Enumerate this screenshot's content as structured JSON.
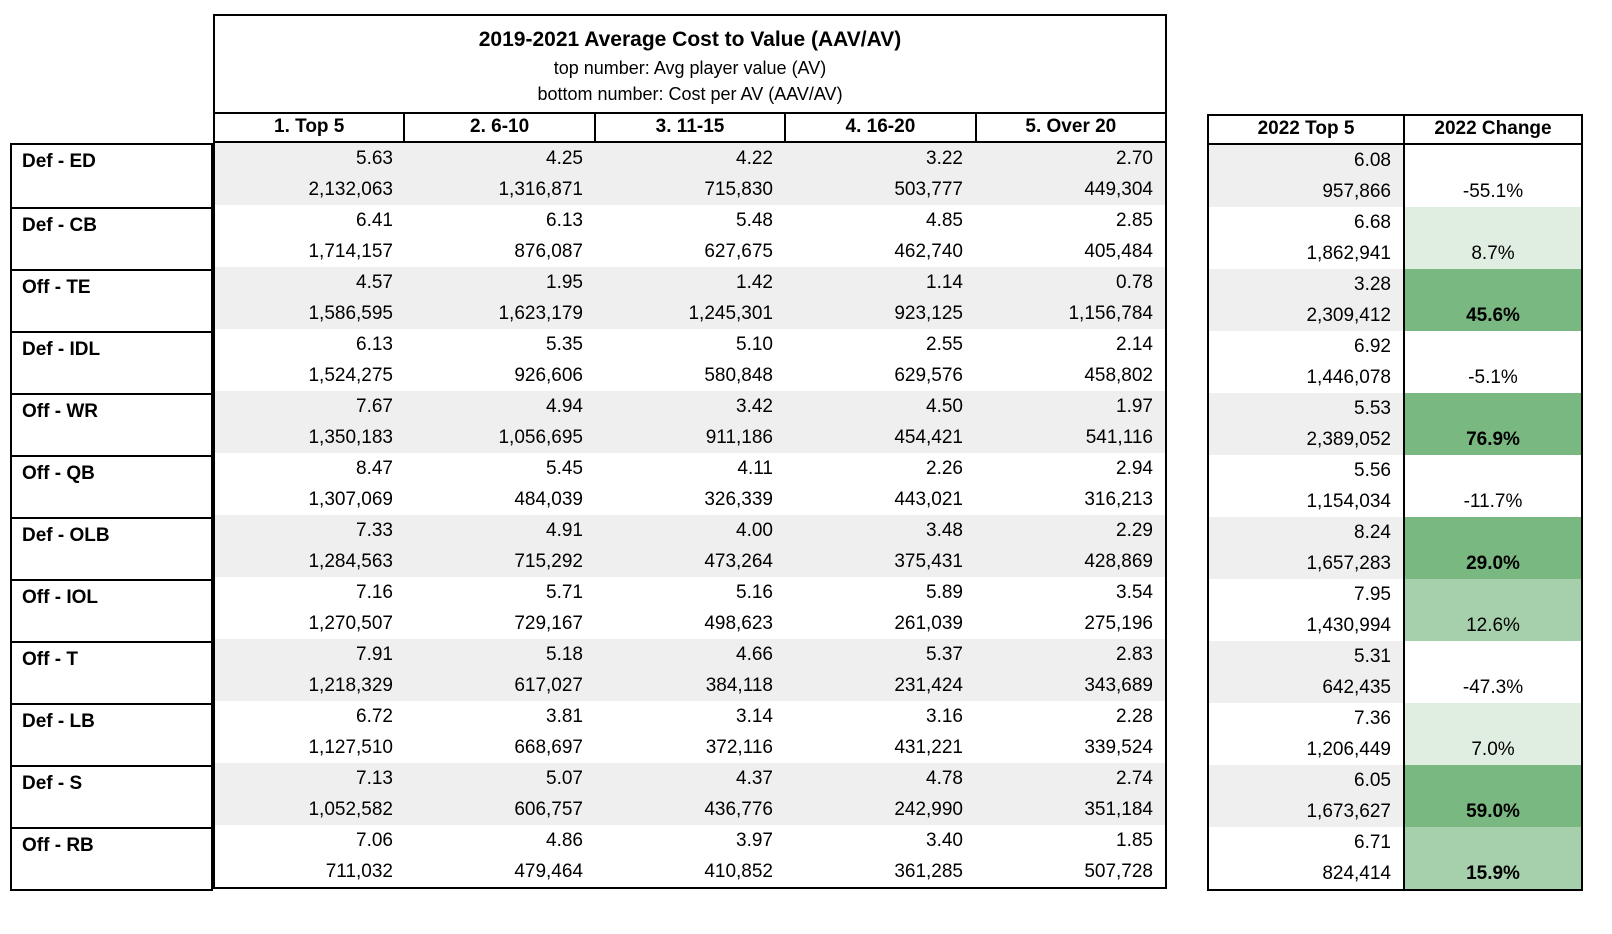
{
  "colors": {
    "border": "#000000",
    "band_gray": "#efefef",
    "row_white": "#ffffff",
    "change_fills": {
      "none": "#ffffff",
      "pale": "#e0eee1",
      "mid": "#a6d0ab",
      "strong": "#79b981"
    }
  },
  "chart_data": {
    "type": "table",
    "title": "2019-2021 Average Cost to Value (AAV/AV)",
    "subtitles": [
      "top number: Avg player value (AV)",
      "bottom number: Cost per AV (AAV/AV)"
    ],
    "columns": [
      "1. Top 5",
      "2. 6-10",
      "3. 11-15",
      "4. 16-20",
      "5. Over 20",
      "2022 Top 5",
      "2022 Change"
    ],
    "row_format": "top number = Avg player value (AV); bottom number = Cost per AV (AAV/AV)",
    "rows": [
      {
        "label": "Def - ED",
        "av": [
          "5.63",
          "4.25",
          "4.22",
          "3.22",
          "2.70"
        ],
        "cost": [
          "2,132,063",
          "1,316,871",
          "715,830",
          "503,777",
          "449,304"
        ],
        "av_2022": "6.08",
        "cost_2022": "957,866",
        "change_2022": "-55.1%",
        "change_fill": "none",
        "change_bold": false
      },
      {
        "label": "Def - CB",
        "av": [
          "6.41",
          "6.13",
          "5.48",
          "4.85",
          "2.85"
        ],
        "cost": [
          "1,714,157",
          "876,087",
          "627,675",
          "462,740",
          "405,484"
        ],
        "av_2022": "6.68",
        "cost_2022": "1,862,941",
        "change_2022": "8.7%",
        "change_fill": "pale",
        "change_bold": false
      },
      {
        "label": "Off - TE",
        "av": [
          "4.57",
          "1.95",
          "1.42",
          "1.14",
          "0.78"
        ],
        "cost": [
          "1,586,595",
          "1,623,179",
          "1,245,301",
          "923,125",
          "1,156,784"
        ],
        "av_2022": "3.28",
        "cost_2022": "2,309,412",
        "change_2022": "45.6%",
        "change_fill": "strong",
        "change_bold": true
      },
      {
        "label": "Def - IDL",
        "av": [
          "6.13",
          "5.35",
          "5.10",
          "2.55",
          "2.14"
        ],
        "cost": [
          "1,524,275",
          "926,606",
          "580,848",
          "629,576",
          "458,802"
        ],
        "av_2022": "6.92",
        "cost_2022": "1,446,078",
        "change_2022": "-5.1%",
        "change_fill": "none",
        "change_bold": false
      },
      {
        "label": "Off - WR",
        "av": [
          "7.67",
          "4.94",
          "3.42",
          "4.50",
          "1.97"
        ],
        "cost": [
          "1,350,183",
          "1,056,695",
          "911,186",
          "454,421",
          "541,116"
        ],
        "av_2022": "5.53",
        "cost_2022": "2,389,052",
        "change_2022": "76.9%",
        "change_fill": "strong",
        "change_bold": true
      },
      {
        "label": "Off - QB",
        "av": [
          "8.47",
          "5.45",
          "4.11",
          "2.26",
          "2.94"
        ],
        "cost": [
          "1,307,069",
          "484,039",
          "326,339",
          "443,021",
          "316,213"
        ],
        "av_2022": "5.56",
        "cost_2022": "1,154,034",
        "change_2022": "-11.7%",
        "change_fill": "none",
        "change_bold": false
      },
      {
        "label": "Def - OLB",
        "av": [
          "7.33",
          "4.91",
          "4.00",
          "3.48",
          "2.29"
        ],
        "cost": [
          "1,284,563",
          "715,292",
          "473,264",
          "375,431",
          "428,869"
        ],
        "av_2022": "8.24",
        "cost_2022": "1,657,283",
        "change_2022": "29.0%",
        "change_fill": "strong",
        "change_bold": true
      },
      {
        "label": "Off - IOL",
        "av": [
          "7.16",
          "5.71",
          "5.16",
          "5.89",
          "3.54"
        ],
        "cost": [
          "1,270,507",
          "729,167",
          "498,623",
          "261,039",
          "275,196"
        ],
        "av_2022": "7.95",
        "cost_2022": "1,430,994",
        "change_2022": "12.6%",
        "change_fill": "mid",
        "change_bold": false
      },
      {
        "label": "Off - T",
        "av": [
          "7.91",
          "5.18",
          "4.66",
          "5.37",
          "2.83"
        ],
        "cost": [
          "1,218,329",
          "617,027",
          "384,118",
          "231,424",
          "343,689"
        ],
        "av_2022": "5.31",
        "cost_2022": "642,435",
        "change_2022": "-47.3%",
        "change_fill": "none",
        "change_bold": false
      },
      {
        "label": "Def - LB",
        "av": [
          "6.72",
          "3.81",
          "3.14",
          "3.16",
          "2.28"
        ],
        "cost": [
          "1,127,510",
          "668,697",
          "372,116",
          "431,221",
          "339,524"
        ],
        "av_2022": "7.36",
        "cost_2022": "1,206,449",
        "change_2022": "7.0%",
        "change_fill": "pale",
        "change_bold": false
      },
      {
        "label": "Def - S",
        "av": [
          "7.13",
          "5.07",
          "4.37",
          "4.78",
          "2.74"
        ],
        "cost": [
          "1,052,582",
          "606,757",
          "436,776",
          "242,990",
          "351,184"
        ],
        "av_2022": "6.05",
        "cost_2022": "1,673,627",
        "change_2022": "59.0%",
        "change_fill": "strong",
        "change_bold": true
      },
      {
        "label": "Off - RB",
        "av": [
          "7.06",
          "4.86",
          "3.97",
          "3.40",
          "1.85"
        ],
        "cost": [
          "711,032",
          "479,464",
          "410,852",
          "361,285",
          "507,728"
        ],
        "av_2022": "6.71",
        "cost_2022": "824,414",
        "change_2022": "15.9%",
        "change_fill": "mid",
        "change_bold": true
      }
    ]
  }
}
